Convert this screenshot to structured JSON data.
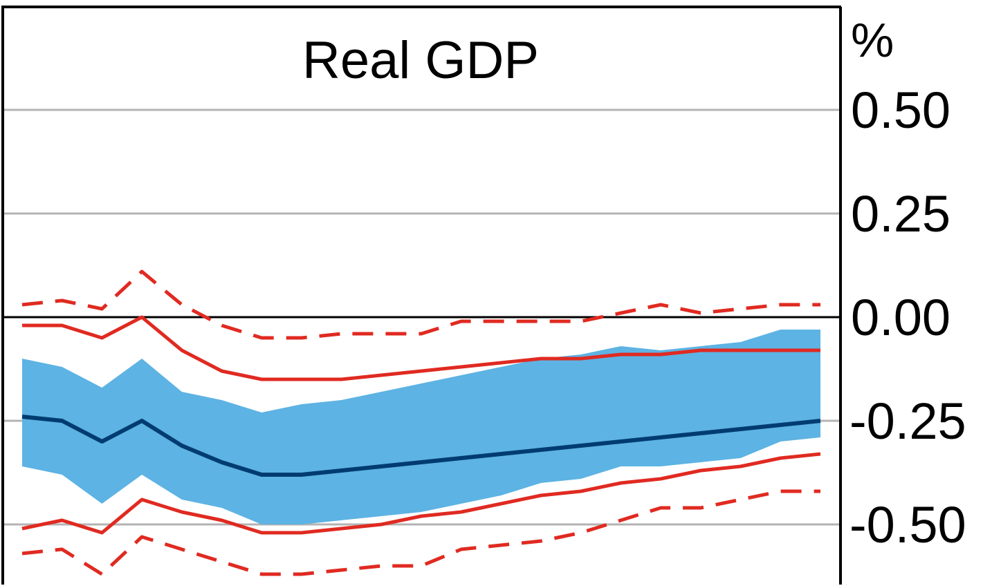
{
  "chart_data": {
    "type": "line",
    "title": "Real GDP",
    "y_unit_label": "%",
    "xlabel": "",
    "ylabel": "",
    "ylim": [
      -0.65,
      0.75
    ],
    "yticks": [
      0.5,
      0.25,
      0.0,
      -0.25,
      -0.5
    ],
    "ytick_labels": [
      "0.50",
      "0.25",
      "0.00",
      "-0.25",
      "-0.50"
    ],
    "grid": true,
    "x": [
      1,
      2,
      3,
      4,
      5,
      6,
      7,
      8,
      9,
      10,
      11,
      12,
      13,
      14,
      15,
      16,
      17,
      18,
      19,
      20,
      21
    ],
    "band": {
      "upper": [
        -0.1,
        -0.12,
        -0.17,
        -0.1,
        -0.18,
        -0.2,
        -0.23,
        -0.21,
        -0.2,
        -0.18,
        -0.16,
        -0.14,
        -0.12,
        -0.1,
        -0.09,
        -0.07,
        -0.08,
        -0.07,
        -0.06,
        -0.03,
        -0.03
      ],
      "lower": [
        -0.36,
        -0.38,
        -0.45,
        -0.38,
        -0.44,
        -0.46,
        -0.5,
        -0.5,
        -0.49,
        -0.48,
        -0.47,
        -0.45,
        -0.43,
        -0.4,
        -0.39,
        -0.36,
        -0.36,
        -0.35,
        -0.34,
        -0.3,
        -0.29
      ],
      "color": "#5db3e3"
    },
    "series": [
      {
        "role": "central",
        "values": [
          -0.24,
          -0.25,
          -0.3,
          -0.25,
          -0.31,
          -0.35,
          -0.38,
          -0.38,
          -0.37,
          -0.36,
          -0.35,
          -0.34,
          -0.33,
          -0.32,
          -0.31,
          -0.3,
          -0.29,
          -0.28,
          -0.27,
          -0.26,
          -0.25
        ],
        "color": "#003c71",
        "style": "solid"
      },
      {
        "role": "inner-upper",
        "values": [
          -0.02,
          -0.02,
          -0.05,
          0.0,
          -0.08,
          -0.13,
          -0.15,
          -0.15,
          -0.15,
          -0.14,
          -0.13,
          -0.12,
          -0.11,
          -0.1,
          -0.1,
          -0.09,
          -0.09,
          -0.08,
          -0.08,
          -0.08,
          -0.08
        ],
        "color": "#e02a21",
        "style": "solid"
      },
      {
        "role": "inner-lower",
        "values": [
          -0.51,
          -0.49,
          -0.52,
          -0.44,
          -0.47,
          -0.49,
          -0.52,
          -0.52,
          -0.51,
          -0.5,
          -0.48,
          -0.47,
          -0.45,
          -0.43,
          -0.42,
          -0.4,
          -0.39,
          -0.37,
          -0.36,
          -0.34,
          -0.33
        ],
        "color": "#e02a21",
        "style": "solid"
      },
      {
        "role": "outer-upper",
        "values": [
          0.03,
          0.04,
          0.02,
          0.11,
          0.03,
          -0.02,
          -0.05,
          -0.05,
          -0.04,
          -0.04,
          -0.04,
          -0.01,
          -0.01,
          -0.01,
          -0.01,
          0.01,
          0.03,
          0.01,
          0.02,
          0.03,
          0.03
        ],
        "color": "#e02a21",
        "style": "dashed"
      },
      {
        "role": "outer-lower",
        "values": [
          -0.57,
          -0.56,
          -0.62,
          -0.53,
          -0.56,
          -0.59,
          -0.62,
          -0.62,
          -0.61,
          -0.6,
          -0.6,
          -0.56,
          -0.55,
          -0.54,
          -0.52,
          -0.49,
          -0.46,
          -0.46,
          -0.44,
          -0.42,
          -0.42
        ],
        "color": "#e02a21",
        "style": "dashed"
      }
    ]
  },
  "colors": {
    "gridline": "#b3b3b3",
    "zero_line": "#000000",
    "frame": "#000000"
  }
}
